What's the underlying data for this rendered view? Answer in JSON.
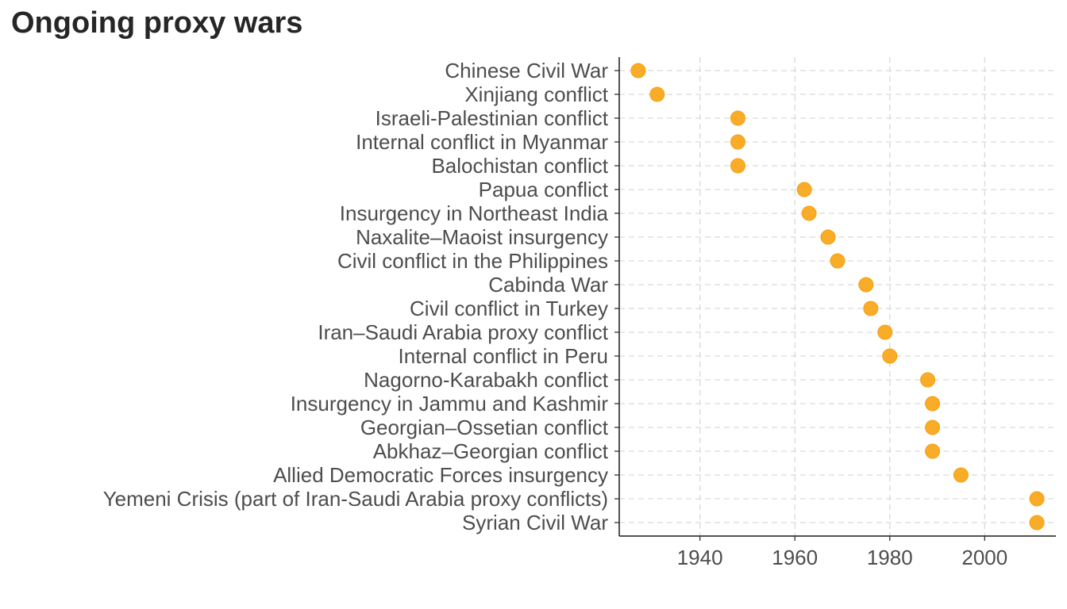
{
  "chart_data": {
    "type": "scatter",
    "title": "Ongoing proxy wars",
    "xlabel": "",
    "ylabel": "",
    "xlim": [
      1923,
      2015
    ],
    "x_ticks": [
      1940,
      1960,
      1980,
      2000
    ],
    "grid": true,
    "point_color": "#F9A81B",
    "categories": [
      "Chinese Civil War",
      "Xinjiang conflict",
      "Israeli-Palestinian conflict",
      "Internal conflict in Myanmar",
      "Balochistan conflict",
      "Papua conflict",
      "Insurgency in Northeast India",
      "Naxalite–Maoist insurgency",
      "Civil conflict in the Philippines",
      "Cabinda War",
      "Civil conflict in Turkey",
      "Iran–Saudi Arabia proxy conflict",
      "Internal conflict in Peru",
      "Nagorno-Karabakh conflict",
      "Insurgency in Jammu and Kashmir",
      "Georgian–Ossetian conflict",
      "Abkhaz–Georgian conflict",
      "Allied Democratic Forces insurgency",
      "Yemeni Crisis (part of Iran-Saudi Arabia proxy conflicts)",
      "Syrian Civil War"
    ],
    "values": [
      1927,
      1931,
      1948,
      1948,
      1948,
      1962,
      1963,
      1967,
      1969,
      1975,
      1976,
      1979,
      1980,
      1988,
      1989,
      1989,
      1989,
      1995,
      2011,
      2011
    ]
  }
}
